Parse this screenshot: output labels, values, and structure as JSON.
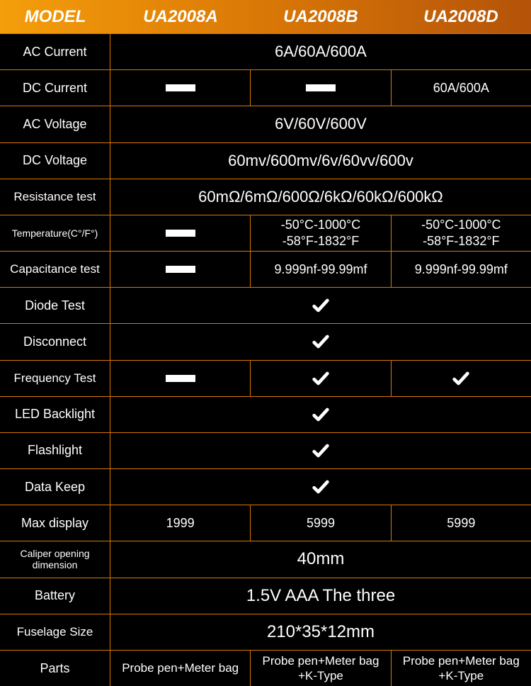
{
  "header": {
    "label": "MODEL",
    "models": [
      "UA2008A",
      "UA2008B",
      "UA2008D"
    ]
  },
  "rows": [
    {
      "label": "AC Current",
      "span": "6A/60A/600A"
    },
    {
      "label": "DC Current",
      "cols": [
        {
          "type": "dash"
        },
        {
          "type": "dash"
        },
        {
          "type": "text",
          "value": "60A/600A"
        }
      ]
    },
    {
      "label": "AC Voltage",
      "span": "6V/60V/600V"
    },
    {
      "label": "DC Voltage",
      "span": "60mv/600mv/6v/60vv/600v"
    },
    {
      "label": "Resistance test",
      "span": "60mΩ/6mΩ/600Ω/6kΩ/60kΩ/600kΩ",
      "labelSize": "med"
    },
    {
      "label": "Temperature(C°/F°)",
      "labelSize": "small",
      "cols": [
        {
          "type": "dash"
        },
        {
          "type": "lines",
          "lines": [
            "-50°C-1000°C",
            "-58°F-1832°F"
          ]
        },
        {
          "type": "lines",
          "lines": [
            "-50°C-1000°C",
            "-58°F-1832°F"
          ]
        }
      ]
    },
    {
      "label": "Capacitance test",
      "labelSize": "med",
      "cols": [
        {
          "type": "dash"
        },
        {
          "type": "text",
          "value": "9.999nf-99.99mf"
        },
        {
          "type": "text",
          "value": "9.999nf-99.99mf"
        }
      ]
    },
    {
      "label": "Diode Test",
      "spanCheck": true
    },
    {
      "label": "Disconnect",
      "spanCheck": true
    },
    {
      "label": "Frequency Test",
      "labelSize": "med",
      "cols": [
        {
          "type": "dash"
        },
        {
          "type": "check"
        },
        {
          "type": "check"
        }
      ]
    },
    {
      "label": "LED Backlight",
      "spanCheck": true
    },
    {
      "label": "Flashlight",
      "spanCheck": true
    },
    {
      "label": "Data Keep",
      "spanCheck": true
    },
    {
      "label": "Max display",
      "cols": [
        {
          "type": "text",
          "value": "1999"
        },
        {
          "type": "text",
          "value": "5999"
        },
        {
          "type": "text",
          "value": "5999"
        }
      ]
    },
    {
      "label": "Caliper opening dimension",
      "labelSize": "small",
      "span": "40mm",
      "spanSize": "big"
    },
    {
      "label": "Battery",
      "span": "1.5V AAA  The three",
      "spanSize": "big"
    },
    {
      "label": "Fuselage Size",
      "labelSize": "med",
      "span": "210*35*12mm",
      "spanSize": "big"
    },
    {
      "label": "Parts",
      "cols": [
        {
          "type": "text",
          "value": "Probe pen+Meter bag",
          "size": "med"
        },
        {
          "type": "lines",
          "lines": [
            "Probe pen+Meter bag",
            "+K-Type"
          ],
          "size": "med"
        },
        {
          "type": "lines",
          "lines": [
            "Probe pen+Meter bag",
            "+K-Type"
          ],
          "size": "med"
        }
      ]
    }
  ],
  "colors": {
    "border": "#d97706",
    "bg": "#000000",
    "text": "#ffffff"
  }
}
